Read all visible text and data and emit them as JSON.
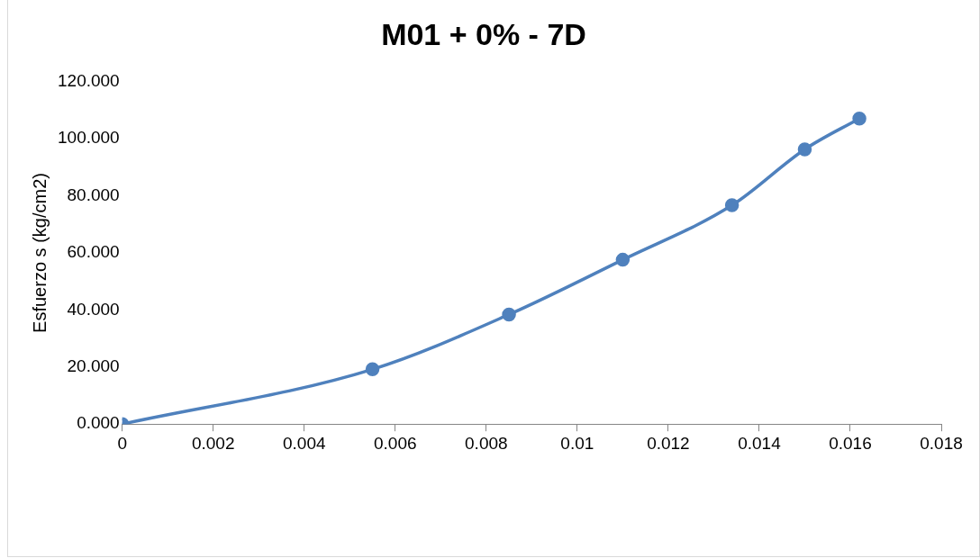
{
  "chart_data": {
    "type": "line",
    "title": "M01 + 0% - 7D",
    "ylabel": "Esfuerzo s (kg/cm2)",
    "x": [
      0,
      0.0055,
      0.0085,
      0.011,
      0.0134,
      0.015,
      0.0162
    ],
    "series": [
      {
        "color": "#4f81bd",
        "values": [
          0,
          19.2,
          38.4,
          57.6,
          76.7,
          96.3,
          107.1
        ]
      }
    ],
    "xlim": [
      0,
      0.018
    ],
    "xticks": [
      0,
      0.002,
      0.004,
      0.006,
      0.008,
      0.01,
      0.012,
      0.014,
      0.016,
      0.018
    ],
    "ylim": [
      0,
      120
    ],
    "yticks": [
      {
        "value": 0,
        "label": "0.000"
      },
      {
        "value": 20,
        "label": "20.000"
      },
      {
        "value": 40,
        "label": "40.000"
      },
      {
        "value": 60,
        "label": "60.000"
      },
      {
        "value": 80,
        "label": "80.000"
      },
      {
        "value": 100,
        "label": "100.000"
      },
      {
        "value": 120,
        "label": "120.000"
      }
    ],
    "grid": false,
    "legend": false,
    "marker": "circle",
    "line_style": "solid"
  }
}
